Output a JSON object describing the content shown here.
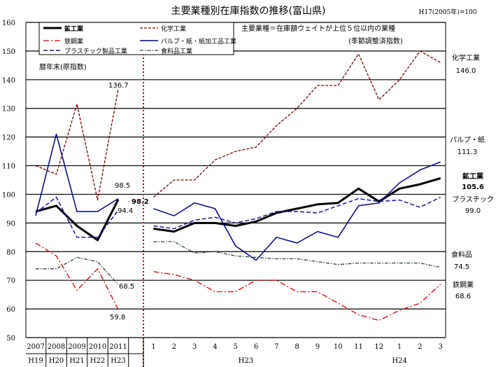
{
  "chart_data": {
    "type": "line",
    "title": "主要業種別在庫指数の推移(富山県)",
    "base_note": "H17(2005年)=100",
    "subtitle_lines": [
      "主要業種＝在庫額ウェイトが上位５位以内の業種",
      "(季節調整済指数)"
    ],
    "annual_note": "暦年末(原指数)",
    "ylim": [
      50,
      160
    ],
    "yticks": [
      50,
      60,
      70,
      80,
      90,
      100,
      110,
      120,
      130,
      140,
      150,
      160
    ],
    "annual_categories": [
      {
        "top": "2007",
        "bottom": "H19"
      },
      {
        "top": "2008",
        "bottom": "H20"
      },
      {
        "top": "2009",
        "bottom": "H21"
      },
      {
        "top": "2010",
        "bottom": "H22"
      },
      {
        "top": "2011",
        "bottom": "H23"
      }
    ],
    "monthly_categories": [
      "1",
      "2",
      "3",
      "4",
      "5",
      "6",
      "7",
      "8",
      "9",
      "10",
      "11",
      "12",
      "1",
      "2",
      "3"
    ],
    "monthly_era_labels": [
      {
        "text": "H23",
        "at": 5.5
      },
      {
        "text": "H24",
        "at": 13
      }
    ],
    "series": [
      {
        "name": "鉱工業",
        "color": "#000000",
        "width": 3,
        "dash": "",
        "annual": [
          94,
          96,
          89,
          84,
          98.2
        ],
        "monthly": [
          88,
          87,
          90,
          90,
          89,
          90.5,
          93.5,
          95,
          96.5,
          97,
          102,
          97.5,
          102,
          103.5,
          105.6
        ],
        "annual_label": "98.2",
        "monthly_label": "105.6",
        "end_name": "鉱工業"
      },
      {
        "name": "化学工業",
        "color": "#7a0000",
        "width": 1.3,
        "dash": "4,2",
        "annual": [
          110,
          107,
          131.5,
          98,
          136.7
        ],
        "monthly": [
          99,
          105,
          105,
          112,
          115,
          116.5,
          124,
          130,
          138,
          138,
          149,
          133,
          140,
          150,
          146.0
        ],
        "annual_label": "136.7",
        "monthly_label": "146.0",
        "end_name": "化学工業"
      },
      {
        "name": "鉄鋼業",
        "color": "#e00000",
        "width": 1.3,
        "dash": "8,3,2,3",
        "annual": [
          83,
          78.5,
          66.5,
          74,
          59.8
        ],
        "monthly": [
          73,
          72,
          70,
          66,
          66,
          70,
          70,
          66,
          66,
          62,
          58,
          56,
          59.5,
          62,
          68.6
        ],
        "annual_label": "59.8",
        "monthly_label": "68.6",
        "end_name": "鉄鋼業"
      },
      {
        "name": "パルプ・紙・紙加工品工業",
        "color": "#00008b",
        "width": 1.5,
        "dash": "",
        "annual": [
          92.5,
          121,
          94,
          94,
          98.5
        ],
        "monthly": [
          95,
          92.5,
          97,
          95,
          82,
          77,
          85,
          83,
          87,
          85,
          96,
          97,
          104,
          108.5,
          111.3
        ],
        "annual_label": "98.5",
        "monthly_label": "111.3",
        "end_name": "パルプ・紙"
      },
      {
        "name": "プラスチック製品工業",
        "color": "#1a1aa0",
        "width": 1.5,
        "dash": "6,3",
        "annual": [
          93.5,
          99,
          85,
          85,
          94.4
        ],
        "monthly": [
          89,
          88,
          91,
          92,
          90,
          91.5,
          94,
          94,
          93.5,
          96,
          98.5,
          97.5,
          98,
          95.5,
          99.0
        ],
        "annual_label": "94.4",
        "monthly_label": "99.0",
        "end_name": "プラスチック"
      },
      {
        "name": "食料品工業",
        "color": "#2b4a2b",
        "width": 1.3,
        "dash": "5,2,1.5,2",
        "annual": [
          74,
          74,
          78,
          76.5,
          68.5
        ],
        "monthly": [
          83.5,
          83.5,
          79.5,
          80,
          78.5,
          78,
          77.5,
          77.5,
          76.5,
          75.5,
          76,
          76,
          76,
          76,
          74.5
        ],
        "annual_label": "68.5",
        "monthly_label": "74.5",
        "end_name": "食料品"
      }
    ]
  }
}
